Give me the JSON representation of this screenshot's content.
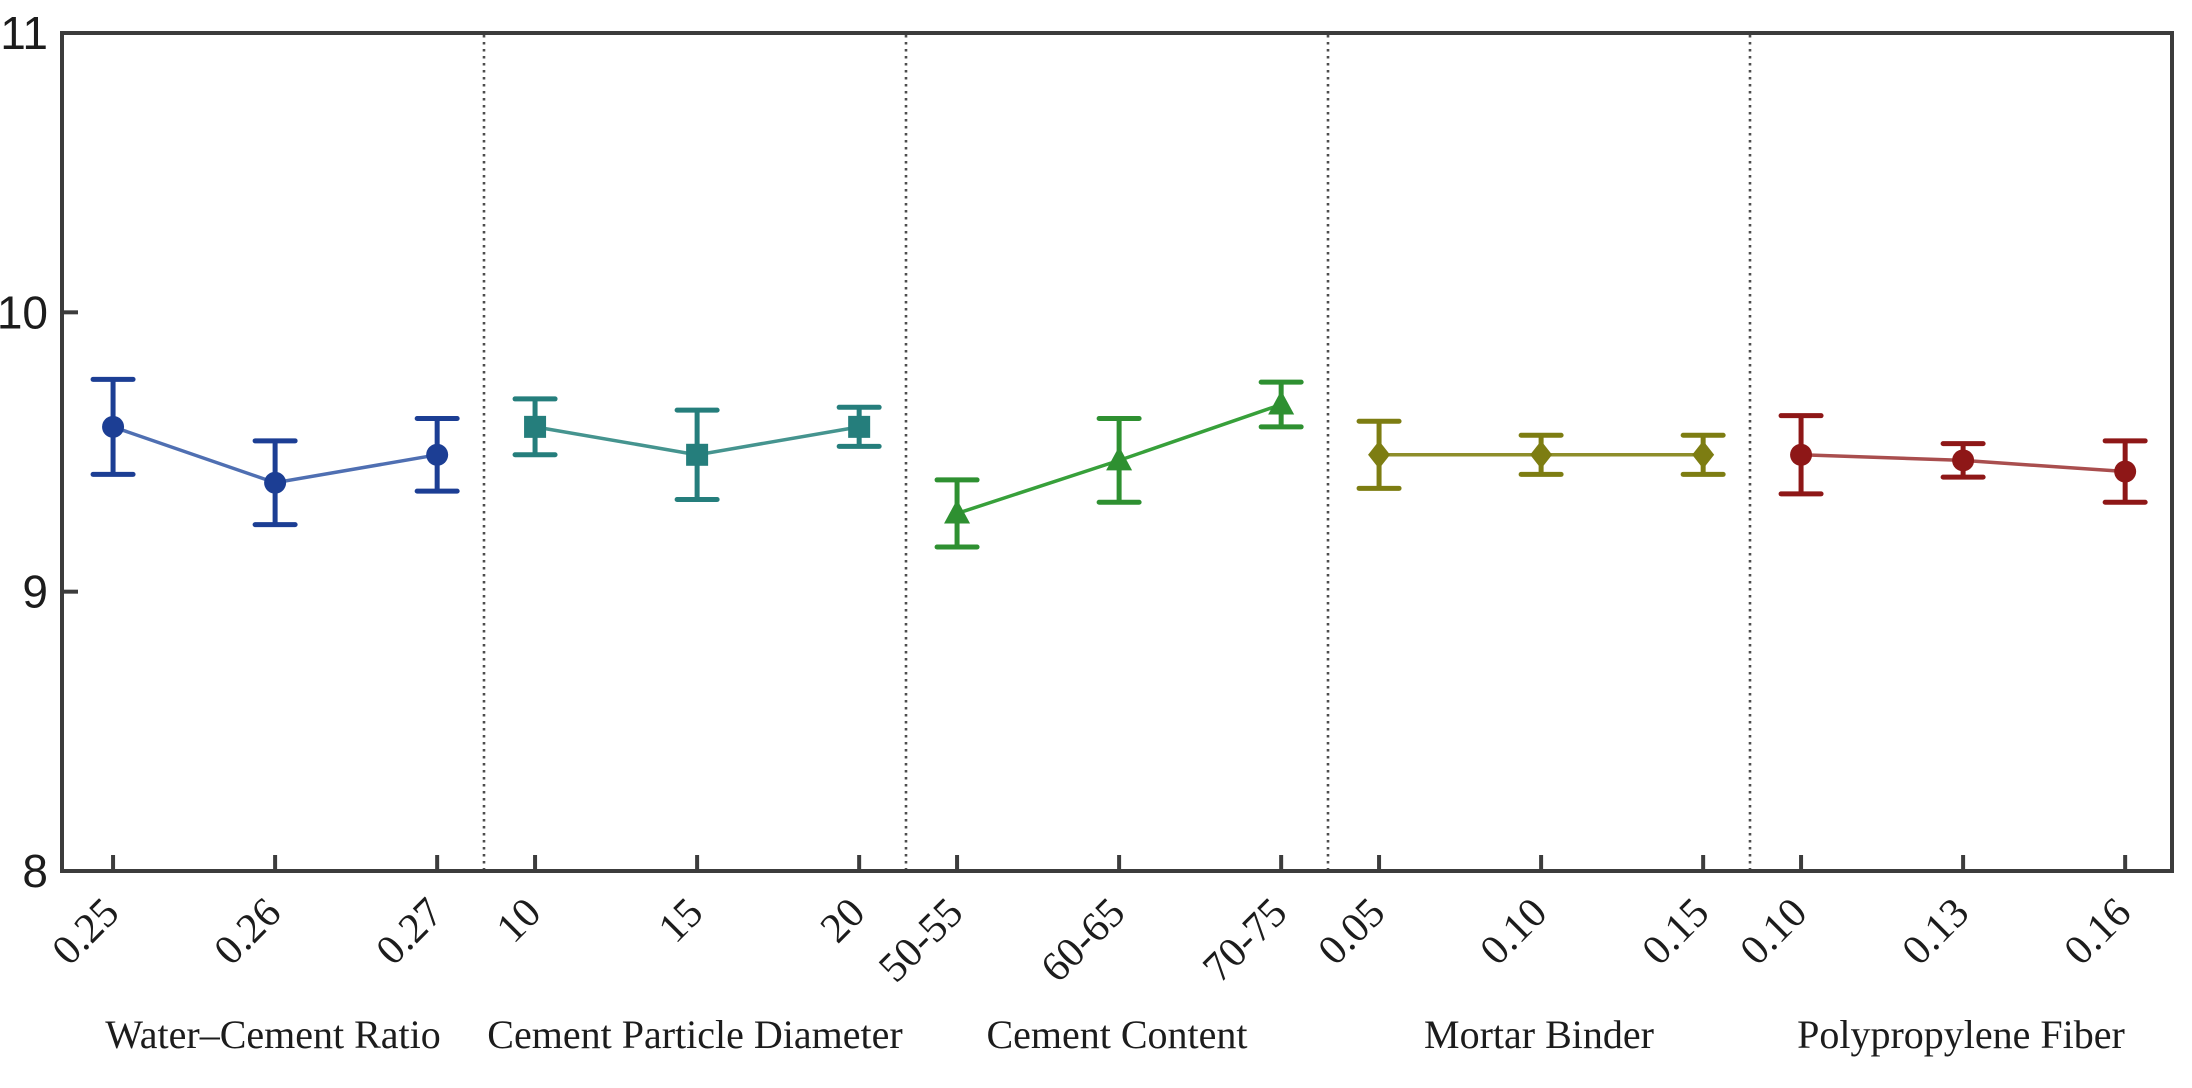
{
  "chart_data": {
    "type": "line",
    "title": "",
    "xlabel": "",
    "ylabel": "",
    "ylim": [
      8,
      11
    ],
    "yticks": [
      "8",
      "9",
      "10",
      "11"
    ],
    "grid": false,
    "legend": "none",
    "layout": "five panels separated by vertical dotted lines, each panel is one factor with three levels, points with symmetric error bars connected by lines",
    "axis_color": "#3c3c3c",
    "separator_color": "#4d4d4d",
    "text_color": "#1c1c1c",
    "background_color": "#ffffff",
    "panels": [
      {
        "label": "Water–Cement Ratio",
        "categories": [
          "0.25",
          "0.26",
          "0.27"
        ],
        "values": [
          9.59,
          9.39,
          9.49
        ],
        "errors": [
          0.17,
          0.15,
          0.13
        ],
        "marker": "circle",
        "marker_color": "#1c3e94",
        "line_color": "#4f6fb2"
      },
      {
        "label": "Cement Particle Diameter",
        "categories": [
          "10",
          "15",
          "20"
        ],
        "values": [
          9.59,
          9.49,
          9.59
        ],
        "errors": [
          0.1,
          0.16,
          0.07
        ],
        "marker": "square",
        "marker_color": "#257e7c",
        "line_color": "#45948f"
      },
      {
        "label": "Cement Content",
        "categories": [
          "50-55",
          "60-65",
          "70-75"
        ],
        "values": [
          9.28,
          9.47,
          9.67
        ],
        "errors": [
          0.12,
          0.15,
          0.08
        ],
        "marker": "triangle-up",
        "marker_color": "#2e9031",
        "line_color": "#37a03a"
      },
      {
        "label": "Mortar Binder",
        "categories": [
          "0.05",
          "0.10",
          "0.15"
        ],
        "values": [
          9.49,
          9.49,
          9.49
        ],
        "errors": [
          0.12,
          0.07,
          0.07
        ],
        "marker": "diamond",
        "marker_color": "#7d7d12",
        "line_color": "#8e8e2b"
      },
      {
        "label": "Polypropylene Fiber",
        "categories": [
          "0.10",
          "0.13",
          "0.16"
        ],
        "values": [
          9.49,
          9.47,
          9.43
        ],
        "errors": [
          0.14,
          0.06,
          0.11
        ],
        "marker": "circle",
        "marker_color": "#8e1717",
        "line_color": "#a94e4e"
      }
    ]
  }
}
